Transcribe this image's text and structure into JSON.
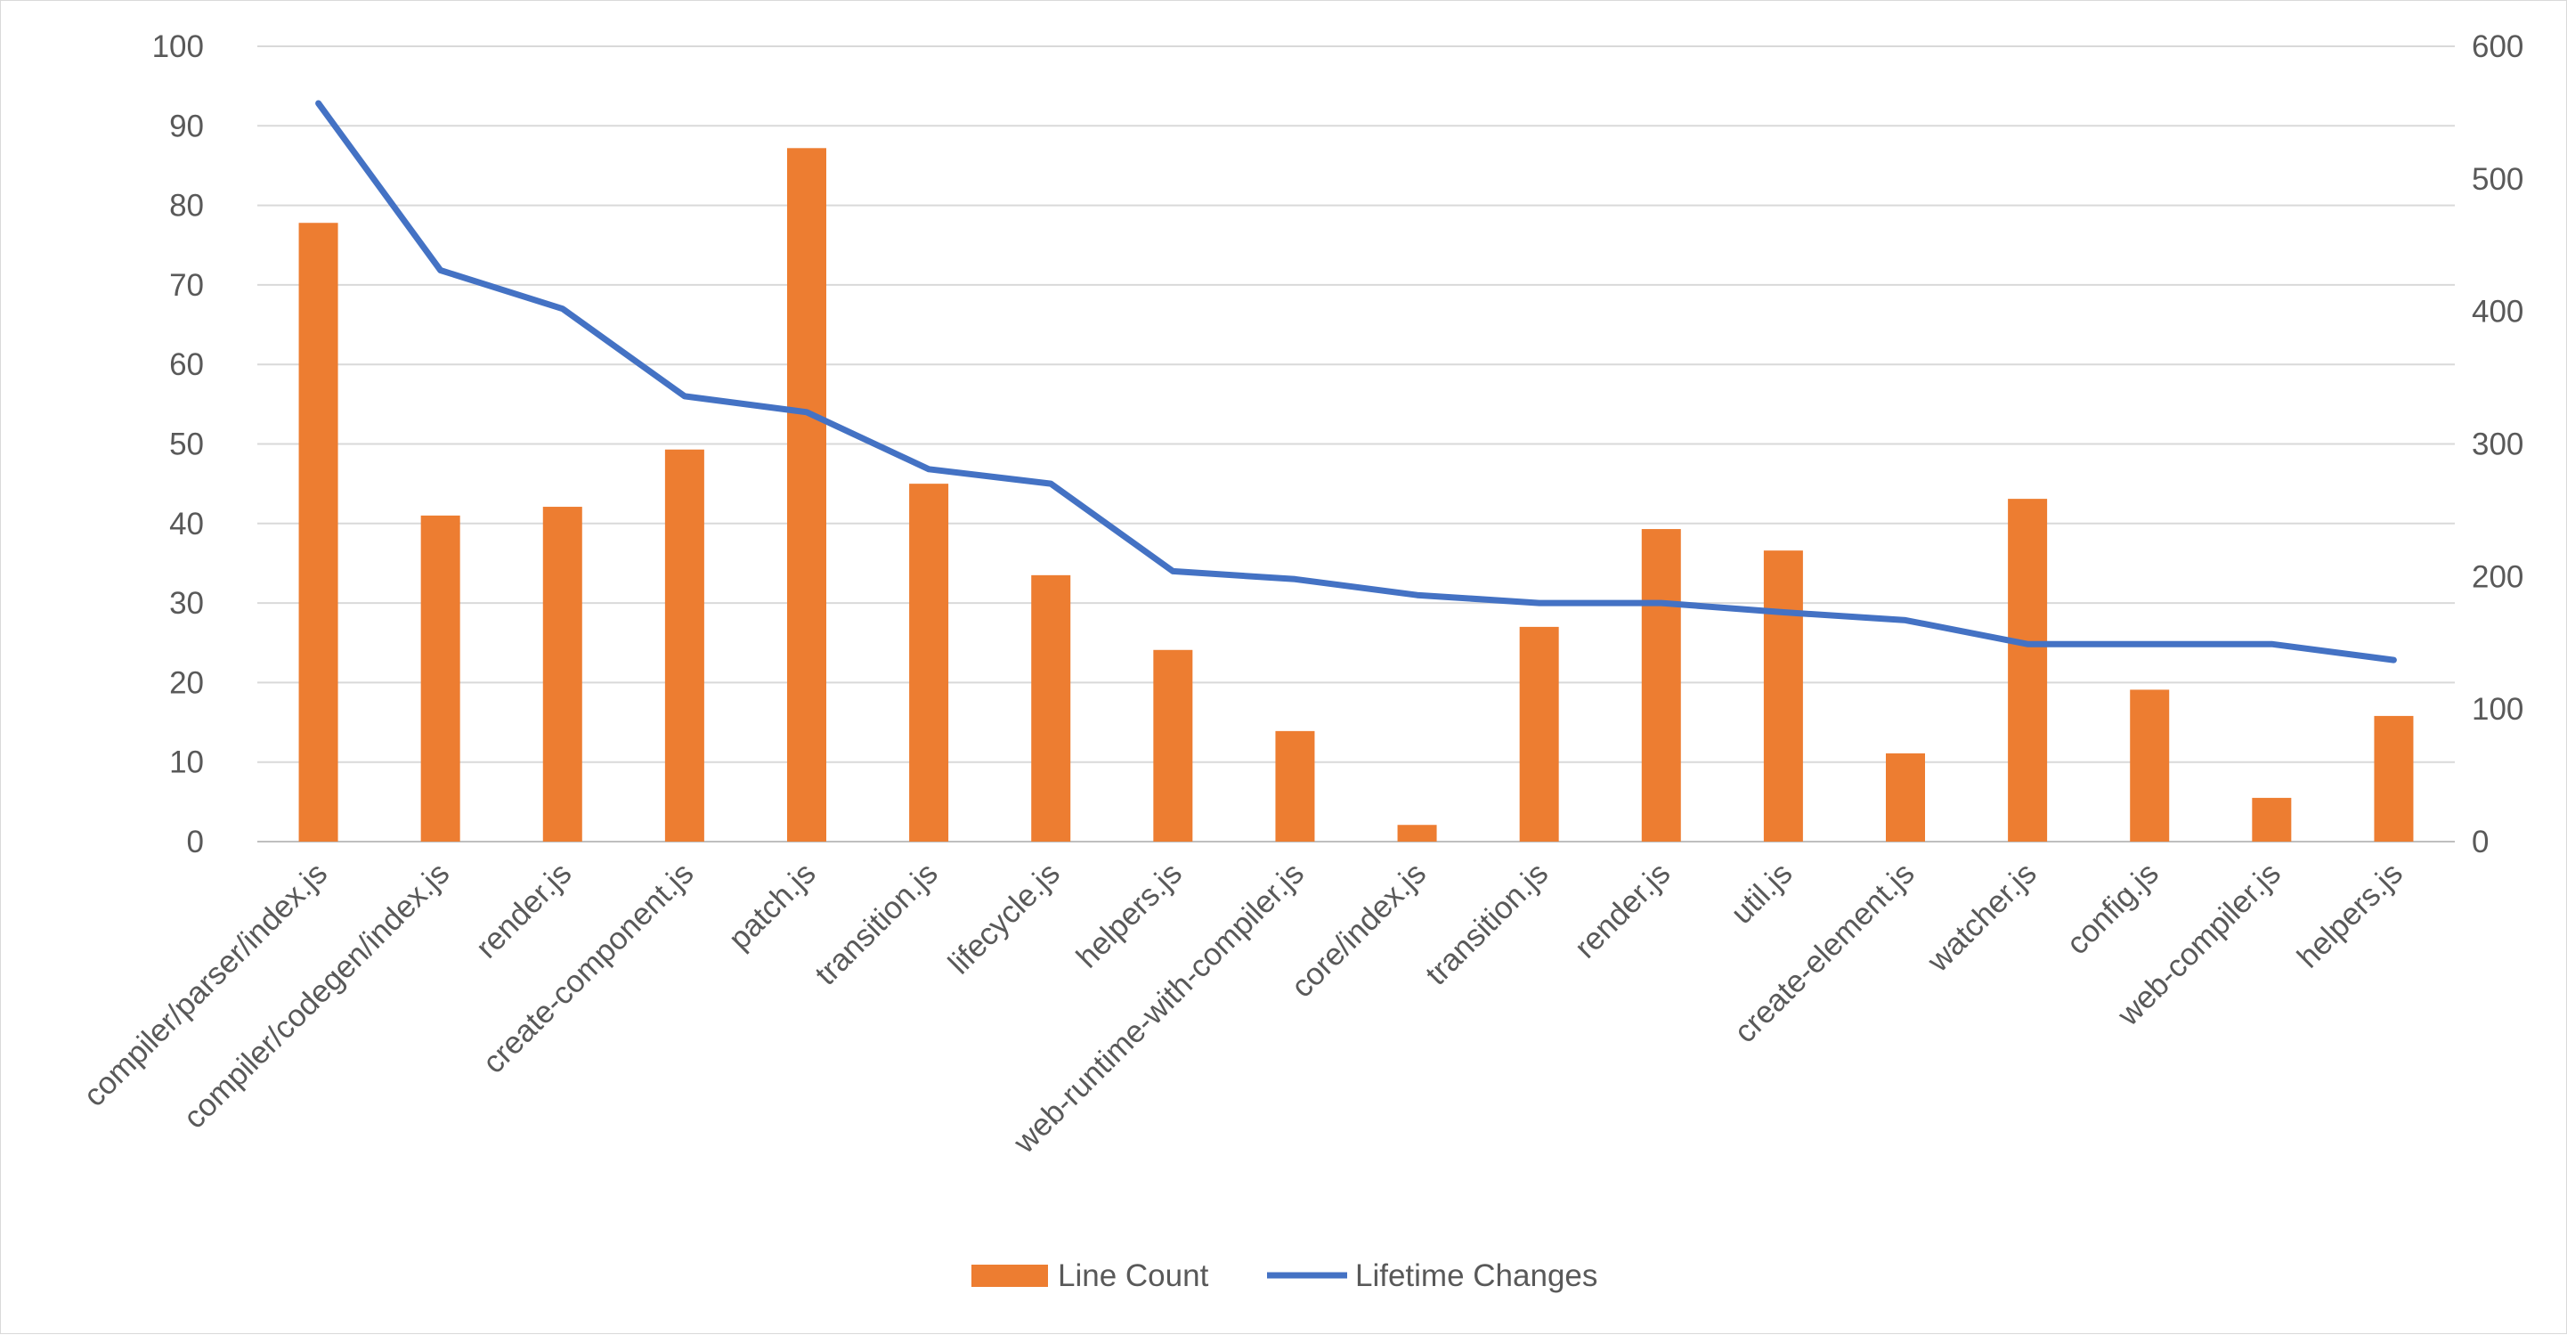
{
  "chart_data": {
    "type": "bar",
    "categories": [
      "compiler/parser/index.js",
      "compiler/codegen/index.js",
      "render.js",
      "create-component.js",
      "patch.js",
      "transition.js",
      "lifecycle.js",
      "helpers.js",
      "web-runtime-with-compiler.js",
      "core/index.js",
      "transition.js",
      "render.js",
      "util.js",
      "create-element.js",
      "watcher.js",
      "config.js",
      "web-compiler.js",
      "helpers.js"
    ],
    "series": [
      {
        "name": "Line Count",
        "type": "bar",
        "axis": "left",
        "color": "#ED7D31",
        "values": [
          77.8,
          41,
          42.1,
          49.3,
          87.2,
          45,
          33.5,
          24.1,
          13.9,
          2.1,
          27,
          39.3,
          36.6,
          11.1,
          43.1,
          19.1,
          5.5,
          15.8
        ]
      },
      {
        "name": "Lifetime Changes",
        "type": "line",
        "axis": "right",
        "color": "#4472C4",
        "values": [
          557,
          431,
          402,
          336,
          324,
          281,
          270,
          204,
          198,
          186,
          180,
          180,
          173,
          167,
          149,
          149,
          149,
          137
        ]
      }
    ],
    "y_left": {
      "min": 0,
      "max": 100,
      "ticks": [
        "0",
        "10",
        "20",
        "30",
        "40",
        "50",
        "60",
        "70",
        "80",
        "90",
        "100"
      ]
    },
    "y_right": {
      "min": 0,
      "max": 600,
      "ticks": [
        "0",
        "100",
        "200",
        "300",
        "400",
        "500",
        "600"
      ]
    },
    "grid": true,
    "legend": {
      "position": "bottom",
      "entries": [
        "Line Count",
        "Lifetime Changes"
      ]
    },
    "title": "",
    "xlabel": "",
    "ylabel": ""
  }
}
